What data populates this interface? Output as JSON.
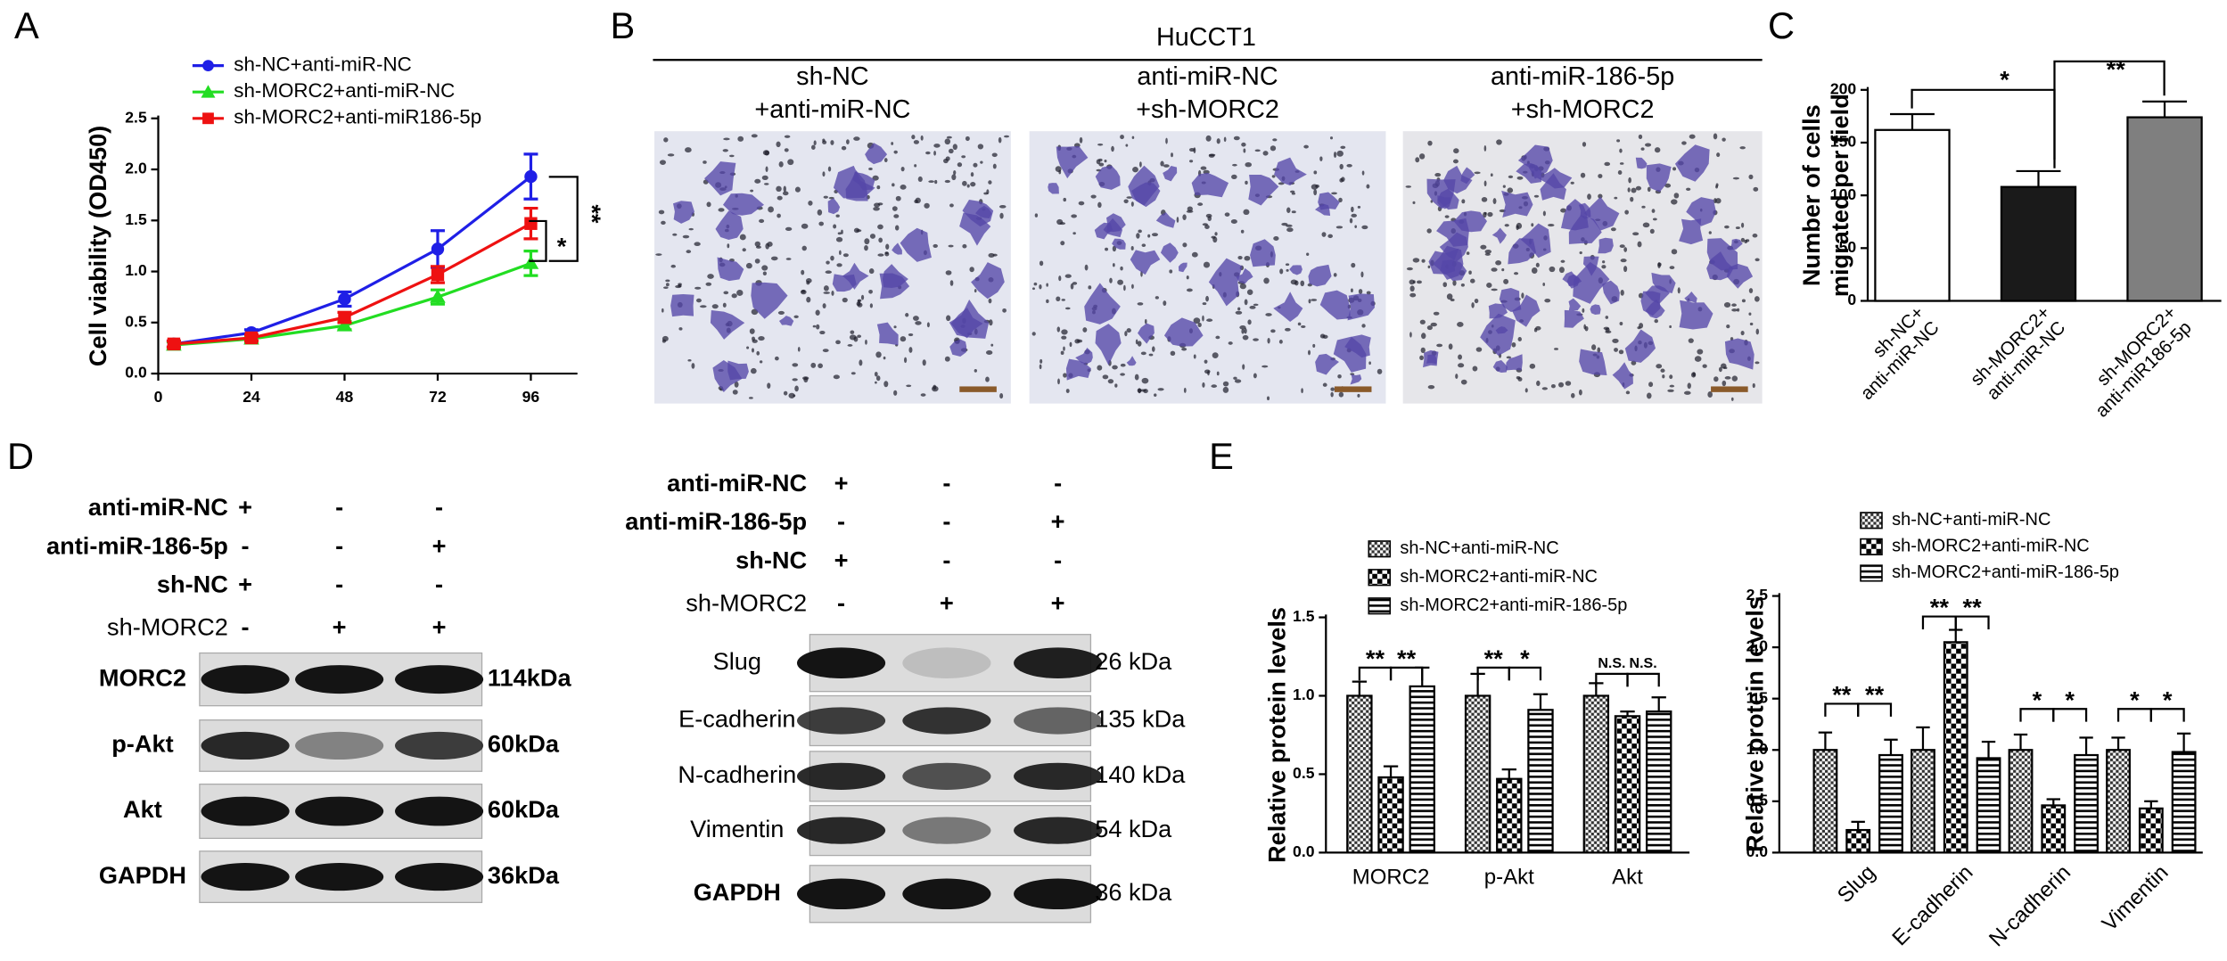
{
  "panel_labels": [
    "A",
    "B",
    "C",
    "D",
    "E"
  ],
  "chart_data": [
    {
      "type": "line",
      "ylabel": "Cell viability (OD450)",
      "x": [
        4,
        24,
        48,
        72,
        96
      ],
      "xlim": [
        0,
        108
      ],
      "xticks": [
        0,
        24,
        48,
        72,
        96
      ],
      "ylim": [
        0,
        2.5
      ],
      "yticks": [
        {
          "value": 0,
          "label": "0.0"
        },
        {
          "value": 0.5,
          "label": "0.5"
        },
        {
          "value": 1,
          "label": "1.0"
        },
        {
          "value": 1.5,
          "label": "1.5"
        },
        {
          "value": 2,
          "label": "2.0"
        },
        {
          "value": 2.5,
          "label": "2.5"
        }
      ],
      "series": [
        {
          "name": "sh-NC+anti-miR-NC",
          "color": "#1f1fe6",
          "marker": "circle",
          "values": [
            0.29,
            0.4,
            0.73,
            1.22,
            1.93
          ],
          "errors": [
            0.03,
            0.03,
            0.07,
            0.18,
            0.22
          ]
        },
        {
          "name": "sh-MORC2+anti-miR-NC",
          "color": "#22dd22",
          "marker": "triangle",
          "values": [
            0.28,
            0.34,
            0.47,
            0.75,
            1.08
          ],
          "errors": [
            0.03,
            0.03,
            0.04,
            0.07,
            0.12
          ]
        },
        {
          "name": "sh-MORC2+anti-miR186-5p",
          "color": "#ee1111",
          "marker": "square",
          "values": [
            0.29,
            0.35,
            0.55,
            0.97,
            1.47
          ],
          "errors": [
            0.03,
            0.03,
            0.05,
            0.08,
            0.15
          ]
        }
      ],
      "annotations": [
        "**",
        "*"
      ]
    },
    {
      "type": "bar",
      "ylabel": "Number of cells\nmigrated per field",
      "categories": [
        "sh-NC+\nanti-miR-NC",
        "sh-MORC2+\nanti-miR-NC",
        "sh-MORC2+\nanti-miR186-5p"
      ],
      "values": [
        162,
        108,
        174
      ],
      "errors": [
        15,
        15,
        15
      ],
      "colors": [
        "#ffffff",
        "#1a1a1a",
        "#7f7f7f"
      ],
      "ylim": [
        0,
        200
      ],
      "yticks": [
        0,
        50,
        100,
        150,
        200
      ],
      "xtick_rotation": 45,
      "annotations": [
        "*",
        "**"
      ]
    },
    {
      "type": "bar",
      "ylabel": "Relative protein levels",
      "categories": [
        "MORC2",
        "p-Akt",
        "Akt"
      ],
      "ylim": [
        0,
        1.5
      ],
      "yticks": [
        {
          "value": 0,
          "label": "0.0"
        },
        {
          "value": 0.5,
          "label": "0.5"
        },
        {
          "value": 1,
          "label": "1.0"
        },
        {
          "value": 1.5,
          "label": "1.5"
        }
      ],
      "xtick_rotation": 0,
      "series": [
        {
          "name": "sh-NC+anti-miR-NC",
          "pattern": "fine-check",
          "values": [
            1.0,
            1.0,
            1.0
          ],
          "errors": [
            0.09,
            0.14,
            0.08
          ]
        },
        {
          "name": "sh-MORC2+anti-miR-NC",
          "pattern": "check",
          "values": [
            0.48,
            0.47,
            0.87
          ],
          "errors": [
            0.07,
            0.06,
            0.03
          ]
        },
        {
          "name": "sh-MORC2+anti-miR-186-5p",
          "pattern": "stripe",
          "values": [
            1.06,
            0.91,
            0.9
          ],
          "errors": [
            0.12,
            0.1,
            0.09
          ]
        }
      ],
      "annotations": [
        "**",
        "**",
        "**",
        "*",
        "N.S.",
        "N.S."
      ]
    },
    {
      "type": "bar",
      "ylabel": "Relative protein levels",
      "categories": [
        "Slug",
        "E-cadherin",
        "N-cadherin",
        "Vimentin"
      ],
      "ylim": [
        0,
        2.5
      ],
      "yticks": [
        {
          "value": 0,
          "label": "0.0"
        },
        {
          "value": 0.5,
          "label": "0.5"
        },
        {
          "value": 1,
          "label": "1.0"
        },
        {
          "value": 1.5,
          "label": "1.5"
        },
        {
          "value": 2,
          "label": "2.0"
        },
        {
          "value": 2.5,
          "label": "2.5"
        }
      ],
      "xtick_rotation": 45,
      "series": [
        {
          "name": "sh-NC+anti-miR-NC",
          "pattern": "fine-check",
          "values": [
            1.0,
            1.0,
            1.0,
            1.0
          ],
          "errors": [
            0.17,
            0.22,
            0.15,
            0.12
          ]
        },
        {
          "name": "sh-MORC2+anti-miR-NC",
          "pattern": "check",
          "values": [
            0.22,
            2.05,
            0.46,
            0.43
          ],
          "errors": [
            0.08,
            0.12,
            0.06,
            0.07
          ]
        },
        {
          "name": "sh-MORC2+anti-miR-186-5p",
          "pattern": "stripe",
          "values": [
            0.95,
            0.92,
            0.95,
            0.98
          ],
          "errors": [
            0.15,
            0.16,
            0.17,
            0.18
          ]
        }
      ],
      "annotations": [
        "**",
        "**",
        "**",
        "**",
        "*",
        "*",
        "*",
        "*"
      ]
    }
  ],
  "micrographs": {
    "cell_line": "HuCCT1",
    "columns": [
      "sh-NC\n+anti-miR-NC",
      "anti-miR-NC\n+sh-MORC2",
      "anti-miR-186-5p\n+sh-MORC2"
    ]
  },
  "blots": [
    {
      "conditions": [
        {
          "label": "anti-miR-NC",
          "signs": [
            "+",
            "-",
            "-"
          ]
        },
        {
          "label": "anti-miR-186-5p",
          "signs": [
            "-",
            "-",
            "+"
          ]
        },
        {
          "label": "sh-NC",
          "signs": [
            "+",
            "-",
            "-"
          ]
        },
        {
          "label": "sh-MORC2",
          "signs": [
            "-",
            "+",
            "+"
          ]
        }
      ],
      "bands": [
        {
          "name": "MORC2",
          "size": "114kDa"
        },
        {
          "name": "p-Akt",
          "size": "60kDa"
        },
        {
          "name": "Akt",
          "size": "60kDa"
        },
        {
          "name": "GAPDH",
          "size": "36kDa"
        }
      ]
    },
    {
      "conditions": [
        {
          "label": "anti-miR-NC",
          "signs": [
            "+",
            "-",
            "-"
          ]
        },
        {
          "label": "anti-miR-186-5p",
          "signs": [
            "-",
            "-",
            "+"
          ]
        },
        {
          "label": "sh-NC",
          "signs": [
            "+",
            "-",
            "-"
          ]
        },
        {
          "label": "sh-MORC2",
          "signs": [
            "-",
            "+",
            "+"
          ]
        }
      ],
      "bands": [
        {
          "name": "Slug",
          "size": "26 kDa"
        },
        {
          "name": "E-cadherin",
          "size": "135 kDa"
        },
        {
          "name": "N-cadherin",
          "size": "140 kDa"
        },
        {
          "name": "Vimentin",
          "size": "54 kDa"
        },
        {
          "name": "GAPDH",
          "size": "36 kDa"
        }
      ]
    }
  ]
}
